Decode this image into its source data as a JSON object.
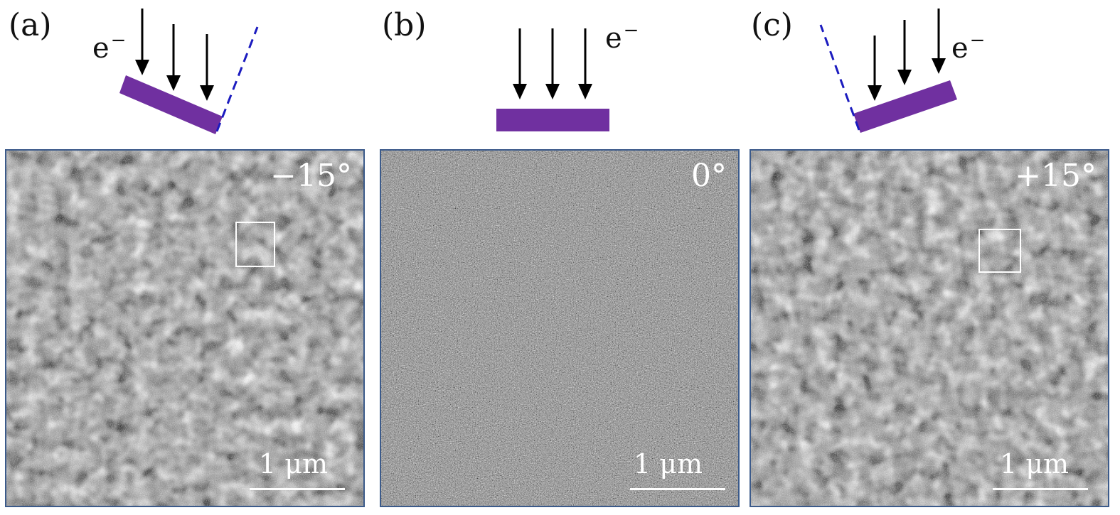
{
  "panels": [
    {
      "id": "a",
      "label": "(a)",
      "beam_label": "e",
      "beam_charge": "−",
      "angle": "−15°",
      "scale": "1 μm"
    },
    {
      "id": "b",
      "label": "(b)",
      "beam_label": "e",
      "beam_charge": "−",
      "angle": "0°",
      "scale": "1 μm"
    },
    {
      "id": "c",
      "label": "(c)",
      "beam_label": "e",
      "beam_charge": "−",
      "angle": "+15°",
      "scale": "1 μm"
    }
  ],
  "colors": {
    "sample": "#7030a0",
    "dashed_line": "#1b1bbf",
    "arrow": "#000000",
    "frame": "#3b5a8a"
  }
}
